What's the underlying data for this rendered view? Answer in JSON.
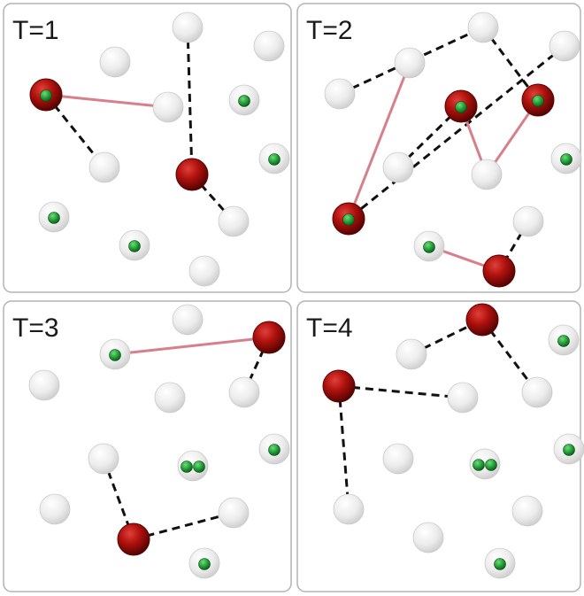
{
  "panels": [
    {
      "label": "T=1",
      "nodes": [
        {
          "id": "a",
          "kind": "red",
          "marker": 1
        },
        {
          "id": "b",
          "kind": "white",
          "marker": 0
        },
        {
          "id": "c",
          "kind": "white",
          "marker": 0
        },
        {
          "id": "d",
          "kind": "white",
          "marker": 0
        },
        {
          "id": "e",
          "kind": "white",
          "marker": 0
        },
        {
          "id": "f",
          "kind": "white",
          "marker": 1
        },
        {
          "id": "g",
          "kind": "white",
          "marker": 1
        },
        {
          "id": "h",
          "kind": "white",
          "marker": 0
        },
        {
          "id": "i",
          "kind": "red",
          "marker": 0
        },
        {
          "id": "j",
          "kind": "white",
          "marker": 0
        },
        {
          "id": "k",
          "kind": "white",
          "marker": 1
        },
        {
          "id": "l",
          "kind": "white",
          "marker": 1
        },
        {
          "id": "m",
          "kind": "white",
          "marker": 0
        }
      ],
      "edges": [
        {
          "from": "a",
          "to": "e",
          "style": "solid"
        },
        {
          "from": "a",
          "to": "h",
          "style": "dashed"
        },
        {
          "from": "c",
          "to": "i",
          "style": "dashed"
        },
        {
          "from": "i",
          "to": "j",
          "style": "dashed"
        }
      ]
    },
    {
      "label": "T=2",
      "nodes": [
        {
          "id": "a",
          "kind": "white",
          "marker": 0
        },
        {
          "id": "b",
          "kind": "white",
          "marker": 0
        },
        {
          "id": "c",
          "kind": "white",
          "marker": 0
        },
        {
          "id": "d",
          "kind": "white",
          "marker": 0
        },
        {
          "id": "e",
          "kind": "red",
          "marker": 1
        },
        {
          "id": "f",
          "kind": "red",
          "marker": 1
        },
        {
          "id": "g",
          "kind": "white",
          "marker": 0
        },
        {
          "id": "h",
          "kind": "white",
          "marker": 0
        },
        {
          "id": "i",
          "kind": "white",
          "marker": 1
        },
        {
          "id": "j",
          "kind": "red",
          "marker": 1
        },
        {
          "id": "k",
          "kind": "white",
          "marker": 0
        },
        {
          "id": "l",
          "kind": "white",
          "marker": 1
        },
        {
          "id": "m",
          "kind": "red",
          "marker": 0
        }
      ],
      "edges": [
        {
          "from": "a",
          "to": "c",
          "style": "dashed"
        },
        {
          "from": "b",
          "to": "j",
          "style": "solid"
        },
        {
          "from": "d",
          "to": "j",
          "style": "dashed"
        },
        {
          "from": "e",
          "to": "g",
          "style": "dashed"
        },
        {
          "from": "e",
          "to": "h",
          "style": "solid"
        },
        {
          "from": "f",
          "to": "h",
          "style": "solid"
        },
        {
          "from": "c",
          "to": "f",
          "style": "dashed"
        },
        {
          "from": "l",
          "to": "m",
          "style": "solid"
        },
        {
          "from": "k",
          "to": "m",
          "style": "dashed"
        }
      ]
    },
    {
      "label": "T=3",
      "nodes": [
        {
          "id": "a",
          "kind": "white",
          "marker": 0
        },
        {
          "id": "b",
          "kind": "white",
          "marker": 1
        },
        {
          "id": "c",
          "kind": "red",
          "marker": 0
        },
        {
          "id": "d",
          "kind": "white",
          "marker": 0
        },
        {
          "id": "e",
          "kind": "white",
          "marker": 0
        },
        {
          "id": "f",
          "kind": "white",
          "marker": 0
        },
        {
          "id": "g",
          "kind": "white",
          "marker": 0
        },
        {
          "id": "h",
          "kind": "white",
          "marker": 2
        },
        {
          "id": "i",
          "kind": "white",
          "marker": 1
        },
        {
          "id": "j",
          "kind": "white",
          "marker": 0
        },
        {
          "id": "k",
          "kind": "red",
          "marker": 0
        },
        {
          "id": "l",
          "kind": "white",
          "marker": 0
        },
        {
          "id": "m",
          "kind": "white",
          "marker": 1
        }
      ],
      "edges": [
        {
          "from": "b",
          "to": "c",
          "style": "solid"
        },
        {
          "from": "c",
          "to": "f",
          "style": "dashed"
        },
        {
          "from": "g",
          "to": "k",
          "style": "dashed"
        },
        {
          "from": "k",
          "to": "l",
          "style": "dashed"
        }
      ]
    },
    {
      "label": "T=4",
      "nodes": [
        {
          "id": "a",
          "kind": "red",
          "marker": 0
        },
        {
          "id": "b",
          "kind": "white",
          "marker": 0
        },
        {
          "id": "c",
          "kind": "white",
          "marker": 1
        },
        {
          "id": "d",
          "kind": "red",
          "marker": 0
        },
        {
          "id": "e",
          "kind": "white",
          "marker": 0
        },
        {
          "id": "f",
          "kind": "white",
          "marker": 0
        },
        {
          "id": "g",
          "kind": "white",
          "marker": 0
        },
        {
          "id": "h",
          "kind": "white",
          "marker": 2
        },
        {
          "id": "i",
          "kind": "white",
          "marker": 1
        },
        {
          "id": "j",
          "kind": "white",
          "marker": 0
        },
        {
          "id": "k",
          "kind": "white",
          "marker": 0
        },
        {
          "id": "l",
          "kind": "white",
          "marker": 0
        },
        {
          "id": "m",
          "kind": "white",
          "marker": 1
        }
      ],
      "edges": [
        {
          "from": "b",
          "to": "a",
          "style": "dashed"
        },
        {
          "from": "a",
          "to": "f",
          "style": "dashed"
        },
        {
          "from": "d",
          "to": "e",
          "style": "dashed"
        },
        {
          "from": "d",
          "to": "j",
          "style": "dashed"
        }
      ]
    }
  ],
  "colors": {
    "red": "#b0110d",
    "red_dark": "#5a0503",
    "white": "#eeeeee",
    "marker": "#1f9b34",
    "solid_edge": "#d77f8a",
    "dashed_edge": "#111111",
    "panel_border": "#b3b3b3"
  }
}
